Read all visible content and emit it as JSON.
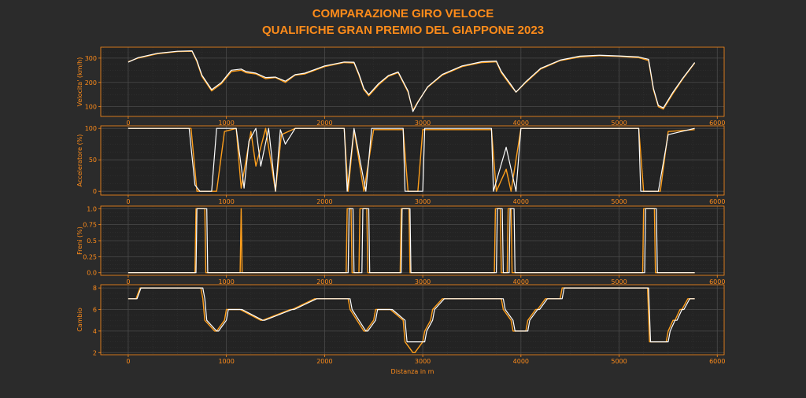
{
  "title_line1": "COMPARAZIONE GIRO VELOCE",
  "title_line2": "QUALIFICHE GRAN PREMIO DEL GIAPPONE 2023",
  "colors": {
    "background": "#2b2b2b",
    "axes": "#232323",
    "accent": "#ff8c1a",
    "driver_a": "#ff9f1c",
    "driver_b": "#ffffff",
    "grid": "#4a4a4a"
  },
  "chart_data": [
    {
      "type": "line",
      "ylabel": "Velocita' (km/h)",
      "xlabel": "",
      "xlim": [
        -280,
        6070
      ],
      "ylim": [
        60,
        345
      ],
      "xticks": [
        0,
        1000,
        2000,
        3000,
        4000,
        5000,
        6000
      ],
      "yticks": [
        100,
        200,
        300
      ],
      "grid": true,
      "series": [
        {
          "x": [
            0,
            100,
            300,
            500,
            650,
            700,
            750,
            850,
            950,
            1050,
            1150,
            1200,
            1300,
            1400,
            1500,
            1600,
            1700,
            1800,
            2000,
            2200,
            2300,
            2350,
            2400,
            2450,
            2550,
            2650,
            2750,
            2850,
            2900,
            2950,
            3050,
            3200,
            3400,
            3600,
            3750,
            3800,
            3900,
            3950,
            4050,
            4200,
            4400,
            4600,
            4800,
            5000,
            5200,
            5300,
            5350,
            5400,
            5450,
            5550,
            5650,
            5770
          ],
          "values": [
            285,
            300,
            318,
            327,
            328,
            285,
            225,
            165,
            195,
            245,
            250,
            240,
            235,
            215,
            220,
            200,
            230,
            235,
            265,
            282,
            280,
            230,
            170,
            145,
            190,
            225,
            240,
            160,
            85,
            120,
            180,
            230,
            265,
            282,
            285,
            240,
            185,
            160,
            200,
            255,
            290,
            305,
            310,
            307,
            302,
            290,
            170,
            100,
            90,
            155,
            215,
            280
          ]
        },
        {
          "x": [
            0,
            100,
            300,
            500,
            650,
            700,
            750,
            850,
            950,
            1050,
            1150,
            1200,
            1300,
            1400,
            1500,
            1600,
            1700,
            1800,
            2000,
            2200,
            2300,
            2350,
            2400,
            2450,
            2550,
            2650,
            2750,
            2850,
            2900,
            2950,
            3050,
            3200,
            3400,
            3600,
            3750,
            3800,
            3900,
            3950,
            4050,
            4200,
            4400,
            4600,
            4800,
            5000,
            5200,
            5300,
            5350,
            5400,
            5450,
            5550,
            5650,
            5770
          ],
          "values": [
            283,
            302,
            320,
            328,
            330,
            290,
            230,
            170,
            200,
            250,
            255,
            245,
            238,
            220,
            222,
            205,
            232,
            238,
            268,
            284,
            283,
            235,
            175,
            150,
            195,
            228,
            243,
            165,
            80,
            118,
            182,
            233,
            268,
            285,
            288,
            245,
            190,
            160,
            203,
            258,
            292,
            308,
            312,
            309,
            305,
            295,
            175,
            105,
            95,
            160,
            218,
            282
          ]
        }
      ]
    },
    {
      "type": "line",
      "ylabel": "Acceleratore (%)",
      "xlabel": "",
      "xlim": [
        -280,
        6070
      ],
      "ylim": [
        -6,
        104
      ],
      "xticks": [
        0,
        1000,
        2000,
        3000,
        4000,
        5000,
        6000
      ],
      "yticks": [
        0,
        50,
        100
      ],
      "grid": true,
      "series": [
        {
          "x": [
            0,
            640,
            700,
            900,
            980,
            1100,
            1150,
            1250,
            1300,
            1400,
            1500,
            1560,
            1700,
            2200,
            2240,
            2300,
            2400,
            2500,
            2800,
            2850,
            2950,
            3000,
            3700,
            3750,
            3850,
            3900,
            4000,
            5200,
            5250,
            5420,
            5500,
            5770
          ],
          "values": [
            100,
            100,
            0,
            0,
            95,
            100,
            5,
            95,
            40,
            100,
            0,
            90,
            100,
            100,
            0,
            98,
            0,
            98,
            98,
            0,
            0,
            98,
            98,
            0,
            35,
            0,
            100,
            100,
            0,
            0,
            95,
            98
          ]
        },
        {
          "x": [
            0,
            620,
            680,
            730,
            850,
            900,
            1000,
            1100,
            1180,
            1230,
            1300,
            1350,
            1430,
            1500,
            1550,
            1600,
            1700,
            2200,
            2230,
            2300,
            2420,
            2480,
            2800,
            2820,
            3000,
            3020,
            3700,
            3720,
            3850,
            3950,
            4000,
            5200,
            5220,
            5400,
            5500,
            5770
          ],
          "values": [
            100,
            100,
            10,
            0,
            0,
            100,
            100,
            100,
            5,
            80,
            100,
            40,
            100,
            0,
            98,
            75,
            100,
            100,
            0,
            100,
            0,
            100,
            100,
            0,
            0,
            100,
            100,
            0,
            70,
            0,
            100,
            100,
            0,
            0,
            90,
            100
          ]
        }
      ]
    },
    {
      "type": "line",
      "ylabel": "Freni (%)",
      "xlabel": "",
      "xlim": [
        -280,
        6070
      ],
      "ylim": [
        -0.04,
        1.04
      ],
      "xticks": [
        0,
        1000,
        2000,
        3000,
        4000,
        5000,
        6000
      ],
      "yticks": [
        0.0,
        0.25,
        0.5,
        0.75,
        1.0
      ],
      "yticklabels": [
        "0.0",
        "0.25",
        "0.5",
        "0.75",
        "1.0"
      ],
      "grid": true,
      "series": [
        {
          "x": [
            0,
            680,
            690,
            780,
            790,
            1140,
            1150,
            1160,
            2220,
            2230,
            2270,
            2280,
            2350,
            2360,
            2430,
            2440,
            2770,
            2780,
            2860,
            2870,
            3730,
            3740,
            3790,
            3800,
            3860,
            3870,
            3900,
            3910,
            5240,
            5250,
            5360,
            5370,
            5770
          ],
          "values": [
            0,
            0,
            1,
            1,
            0,
            0,
            1,
            0,
            0,
            1,
            1,
            0,
            0,
            1,
            1,
            0,
            0,
            1,
            1,
            0,
            0,
            1,
            1,
            0,
            0,
            1,
            1,
            0,
            0,
            1,
            1,
            0,
            0
          ]
        },
        {
          "x": [
            0,
            690,
            700,
            800,
            810,
            2240,
            2250,
            2290,
            2300,
            2380,
            2390,
            2450,
            2460,
            2780,
            2790,
            2870,
            2880,
            3750,
            3760,
            3810,
            3820,
            3880,
            3890,
            3930,
            3940,
            5260,
            5270,
            5380,
            5390,
            5770
          ],
          "values": [
            0,
            0,
            1,
            1,
            0,
            0,
            1,
            1,
            0,
            0,
            1,
            1,
            0,
            0,
            1,
            1,
            0,
            0,
            1,
            1,
            0,
            0,
            1,
            1,
            0,
            0,
            1,
            1,
            0,
            0
          ]
        }
      ]
    },
    {
      "type": "line",
      "ylabel": "Cambio",
      "xlabel": "Distanza in m",
      "xlim": [
        -280,
        6070
      ],
      "ylim": [
        1.8,
        8.3
      ],
      "xticks": [
        0,
        1000,
        2000,
        3000,
        4000,
        5000,
        6000
      ],
      "yticks": [
        2,
        4,
        6,
        8
      ],
      "grid": true,
      "series": [
        {
          "x": [
            0,
            80,
            120,
            200,
            740,
            760,
            780,
            880,
            900,
            980,
            1000,
            1120,
            1140,
            1350,
            1370,
            1650,
            1670,
            1900,
            1920,
            2240,
            2260,
            2400,
            2420,
            2500,
            2520,
            2650,
            2670,
            2800,
            2820,
            2900,
            2920,
            3000,
            3020,
            3080,
            3100,
            3200,
            3220,
            3800,
            3820,
            3900,
            3920,
            4050,
            4070,
            4150,
            4170,
            4250,
            4270,
            4400,
            4420,
            5290,
            5310,
            5480,
            5500,
            5550,
            5570,
            5620,
            5640,
            5700,
            5720,
            5770
          ],
          "values": [
            7,
            7,
            8,
            8,
            8,
            7,
            5,
            4,
            4,
            5,
            6,
            6,
            6,
            5,
            5,
            6,
            6,
            7,
            7,
            7,
            6,
            4,
            4,
            5,
            6,
            6,
            6,
            5,
            3,
            2,
            2,
            3,
            4,
            5,
            6,
            7,
            7,
            7,
            6,
            5,
            4,
            4,
            5,
            6,
            6,
            7,
            7,
            7,
            8,
            8,
            3,
            3,
            4,
            5,
            5,
            6,
            6,
            7,
            7,
            7
          ]
        },
        {
          "x": [
            0,
            90,
            130,
            210,
            760,
            780,
            800,
            900,
            920,
            1000,
            1020,
            1140,
            1160,
            1370,
            1390,
            1670,
            1690,
            1920,
            1940,
            2260,
            2280,
            2420,
            2440,
            2520,
            2540,
            2670,
            2690,
            2820,
            2840,
            2920,
            2940,
            3020,
            3040,
            3100,
            3120,
            3220,
            3240,
            3820,
            3840,
            3920,
            3940,
            4070,
            4090,
            4170,
            4190,
            4270,
            4290,
            4420,
            4440,
            5300,
            5320,
            5500,
            5520,
            5570,
            5590,
            5640,
            5660,
            5720,
            5740,
            5770
          ],
          "values": [
            7,
            7,
            8,
            8,
            8,
            7,
            5,
            4,
            4,
            5,
            6,
            6,
            6,
            5,
            5,
            6,
            6,
            7,
            7,
            7,
            6,
            4,
            4,
            5,
            6,
            6,
            6,
            5,
            3,
            3,
            3,
            3,
            4,
            5,
            6,
            7,
            7,
            7,
            6,
            5,
            4,
            4,
            5,
            6,
            6,
            7,
            7,
            7,
            8,
            8,
            3,
            3,
            4,
            5,
            5,
            6,
            6,
            7,
            7,
            7
          ]
        }
      ]
    }
  ]
}
